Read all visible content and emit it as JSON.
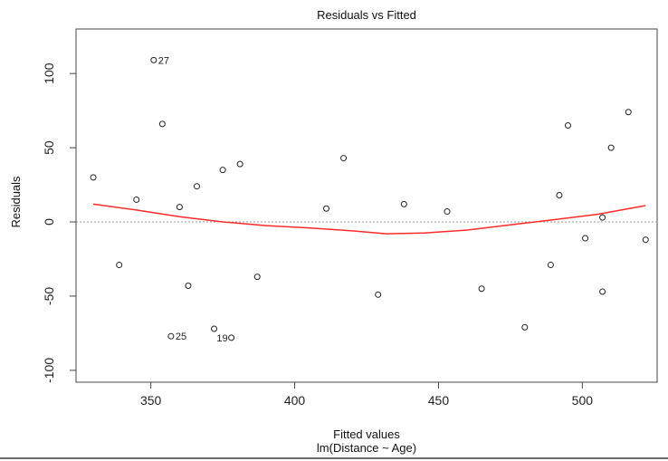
{
  "chart_data": {
    "type": "scatter",
    "title": "Residuals vs Fitted",
    "xlabel": "Fitted values",
    "subtitle": "lm(Distance ~ Age)",
    "ylabel": "Residuals",
    "xlim": [
      324,
      526
    ],
    "ylim": [
      -108,
      130
    ],
    "xticks": [
      350,
      400,
      450,
      500
    ],
    "yticks": [
      -100,
      -50,
      0,
      50,
      100
    ],
    "grid": false,
    "reference_line": {
      "y": 0,
      "style": "dotted",
      "color": "#9a9a9a"
    },
    "points": [
      {
        "x": 330,
        "y": 30
      },
      {
        "x": 339,
        "y": -29
      },
      {
        "x": 345,
        "y": 15
      },
      {
        "x": 351,
        "y": 109,
        "label": "27"
      },
      {
        "x": 354,
        "y": 66
      },
      {
        "x": 357,
        "y": -77,
        "label": "25"
      },
      {
        "x": 360,
        "y": 10
      },
      {
        "x": 363,
        "y": -43
      },
      {
        "x": 366,
        "y": 24
      },
      {
        "x": 372,
        "y": -72
      },
      {
        "x": 375,
        "y": 35
      },
      {
        "x": 378,
        "y": -78,
        "label": "19"
      },
      {
        "x": 381,
        "y": 39
      },
      {
        "x": 387,
        "y": -37
      },
      {
        "x": 411,
        "y": 9
      },
      {
        "x": 417,
        "y": 43
      },
      {
        "x": 429,
        "y": -49
      },
      {
        "x": 438,
        "y": 12
      },
      {
        "x": 453,
        "y": 7
      },
      {
        "x": 465,
        "y": -45
      },
      {
        "x": 480,
        "y": -71
      },
      {
        "x": 489,
        "y": -29
      },
      {
        "x": 492,
        "y": 18
      },
      {
        "x": 495,
        "y": 65
      },
      {
        "x": 501,
        "y": -11
      },
      {
        "x": 507,
        "y": 3
      },
      {
        "x": 507,
        "y": -47
      },
      {
        "x": 510,
        "y": 50
      },
      {
        "x": 516,
        "y": 74
      },
      {
        "x": 522,
        "y": -12
      }
    ],
    "smoother": {
      "name": "loess",
      "color": "#ff2a2a",
      "x": [
        330,
        345,
        360,
        375,
        390,
        405,
        420,
        432,
        445,
        460,
        475,
        490,
        505,
        522
      ],
      "y": [
        12,
        8,
        3.5,
        0,
        -2.5,
        -4,
        -6,
        -8,
        -7.5,
        -5.5,
        -2,
        1.5,
        5,
        11
      ]
    },
    "colors": {
      "points": "#222222",
      "axis": "#444444"
    }
  }
}
